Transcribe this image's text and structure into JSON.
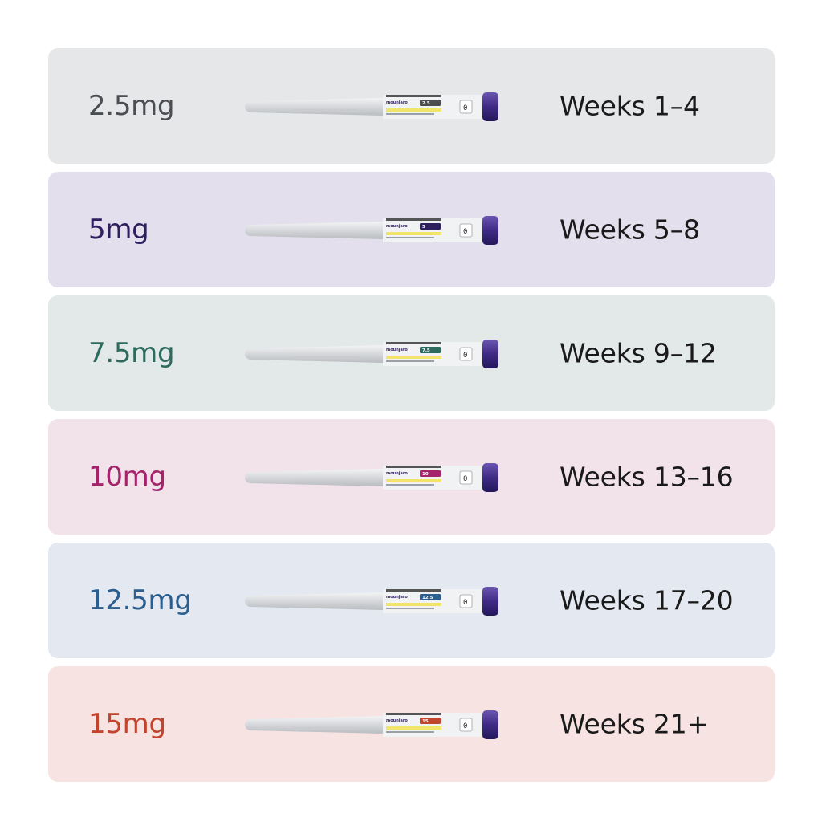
{
  "rows": [
    {
      "dose": "2.5mg",
      "weeks": "Weeks 1–4",
      "pen_dose": "2.5",
      "bg": "#e6e7e8",
      "dose_color": "#4a4d52",
      "tag_color": "#4a4d52"
    },
    {
      "dose": "5mg",
      "weeks": "Weeks 5–8",
      "pen_dose": "5",
      "bg": "#e3dfec",
      "dose_color": "#2e1f5e",
      "tag_color": "#2e1f5e"
    },
    {
      "dose": "7.5mg",
      "weeks": "Weeks 9–12",
      "pen_dose": "7.5",
      "bg": "#e3e9e8",
      "dose_color": "#2d6b5e",
      "tag_color": "#2d6b5e"
    },
    {
      "dose": "10mg",
      "weeks": "Weeks 13–16",
      "pen_dose": "10",
      "bg": "#f2e2ea",
      "dose_color": "#a4236b",
      "tag_color": "#a4236b"
    },
    {
      "dose": "12.5mg",
      "weeks": "Weeks 17–20",
      "pen_dose": "12.5",
      "bg": "#e3e8f1",
      "dose_color": "#2c5f8f",
      "tag_color": "#2c5f8f"
    },
    {
      "dose": "15mg",
      "weeks": "Weeks 21+",
      "pen_dose": "15",
      "bg": "#f6e3e2",
      "dose_color": "#c1452e",
      "tag_color": "#c1452e"
    }
  ],
  "pen": {
    "brand": "mounjaro",
    "dial": "0",
    "icon": "injection-pen-icon"
  }
}
